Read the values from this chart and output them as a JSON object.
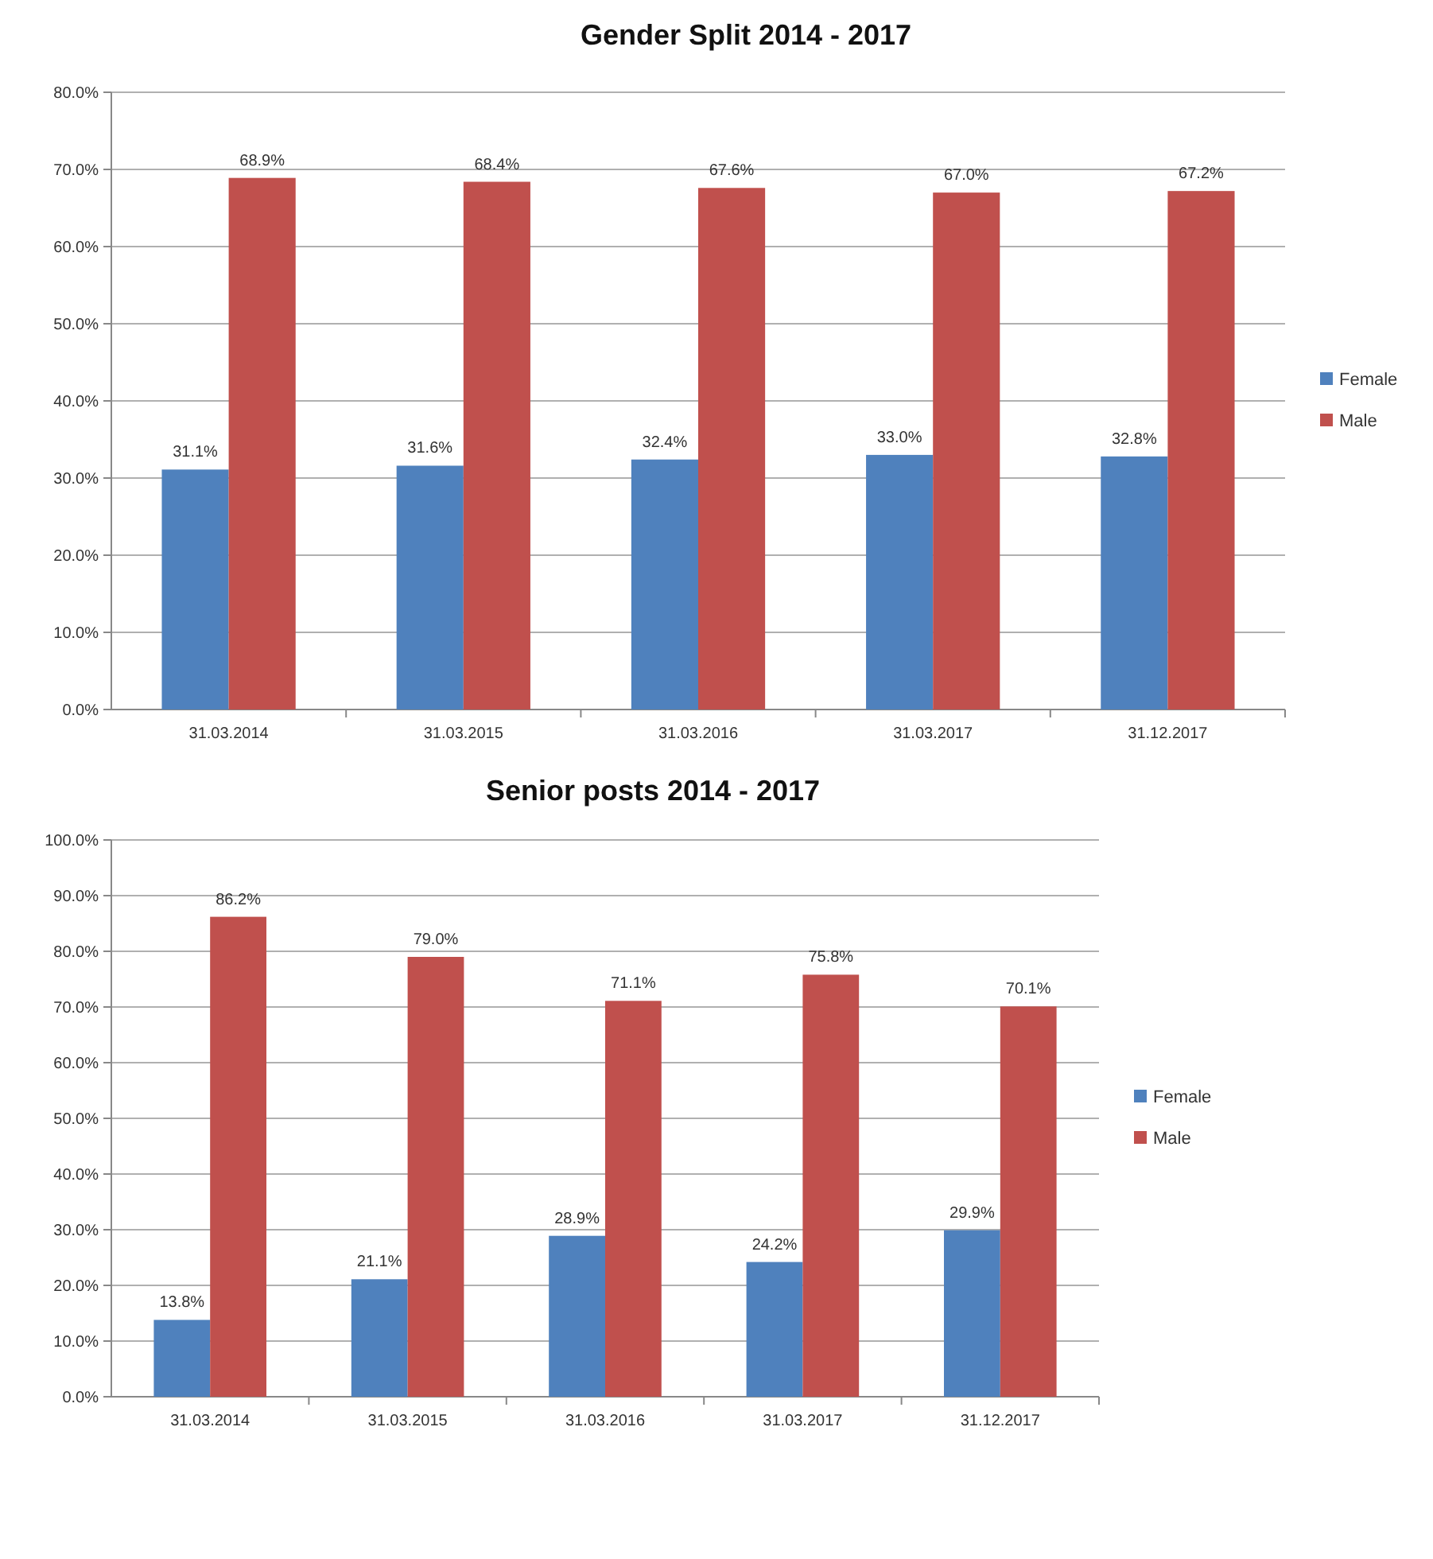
{
  "chart_data": [
    {
      "type": "bar",
      "title": "Gender Split 2014 - 2017",
      "categories": [
        "31.03.2014",
        "31.03.2015",
        "31.03.2016",
        "31.03.2017",
        "31.12.2017"
      ],
      "series": [
        {
          "name": "Female",
          "color": "#4f81bd",
          "values": [
            31.1,
            31.6,
            32.4,
            33.0,
            32.8
          ],
          "value_labels": [
            "31.1%",
            "31.6%",
            "32.4%",
            "33.0%",
            "32.8%"
          ]
        },
        {
          "name": "Male",
          "color": "#c0504d",
          "values": [
            68.9,
            68.4,
            67.6,
            67.0,
            67.2
          ],
          "value_labels": [
            "68.9%",
            "68.4%",
            "67.6%",
            "67.0%",
            "67.2%"
          ]
        }
      ],
      "ylim": [
        0,
        80
      ],
      "yticks": [
        {
          "value": 0,
          "label": "0.0%"
        },
        {
          "value": 10,
          "label": "10.0%"
        },
        {
          "value": 20,
          "label": "20.0%"
        },
        {
          "value": 30,
          "label": "30.0%"
        },
        {
          "value": 40,
          "label": "40.0%"
        },
        {
          "value": 50,
          "label": "50.0%"
        },
        {
          "value": 60,
          "label": "60.0%"
        },
        {
          "value": 70,
          "label": "70.0%"
        },
        {
          "value": 80,
          "label": "80.0%"
        }
      ],
      "grid": "y",
      "legend": "right"
    },
    {
      "type": "bar",
      "title": "Senior posts 2014  - 2017",
      "categories": [
        "31.03.2014",
        "31.03.2015",
        "31.03.2016",
        "31.03.2017",
        "31.12.2017"
      ],
      "series": [
        {
          "name": "Female",
          "color": "#4f81bd",
          "values": [
            13.8,
            21.1,
            28.9,
            24.2,
            29.9
          ],
          "value_labels": [
            "13.8%",
            "21.1%",
            "28.9%",
            "24.2%",
            "29.9%"
          ]
        },
        {
          "name": "Male",
          "color": "#c0504d",
          "values": [
            86.2,
            79.0,
            71.1,
            75.8,
            70.1
          ],
          "value_labels": [
            "86.2%",
            "79.0%",
            "71.1%",
            "75.8%",
            "70.1%"
          ]
        }
      ],
      "ylim": [
        0,
        100
      ],
      "yticks": [
        {
          "value": 0,
          "label": "0.0%"
        },
        {
          "value": 10,
          "label": "10.0%"
        },
        {
          "value": 20,
          "label": "20.0%"
        },
        {
          "value": 30,
          "label": "30.0%"
        },
        {
          "value": 40,
          "label": "40.0%"
        },
        {
          "value": 50,
          "label": "50.0%"
        },
        {
          "value": 60,
          "label": "60.0%"
        },
        {
          "value": 70,
          "label": "70.0%"
        },
        {
          "value": 80,
          "label": "80.0%"
        },
        {
          "value": 90,
          "label": "90.0%"
        },
        {
          "value": 100,
          "label": "100.0%"
        }
      ],
      "grid": "y",
      "legend": "right"
    }
  ]
}
